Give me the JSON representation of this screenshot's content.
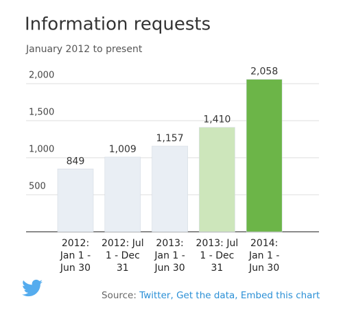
{
  "chart_data": {
    "type": "bar",
    "title": "Information requests",
    "subtitle": "January 2012 to present",
    "categories": [
      "2012: Jan 1 - Jun 30",
      "2012: Jul 1 - Dec 31",
      "2013: Jan 1 - Jun 30",
      "2013: Jul 1 - Dec 31",
      "2014: Jan 1 - Jun 30"
    ],
    "values": [
      849,
      1009,
      1157,
      1410,
      2058
    ],
    "value_labels": [
      "849",
      "1,009",
      "1,157",
      "1,410",
      "2,058"
    ],
    "colors": [
      "#e9eef4",
      "#e9eef4",
      "#e9eef4",
      "#cde6bb",
      "#6cb548"
    ],
    "ylim": [
      0,
      2200
    ],
    "yticks": [
      500,
      {
        "value": 1000,
        "label": "1,000"
      },
      {
        "value": 1500,
        "label": "1,500"
      },
      {
        "value": 2000,
        "label": "2,000"
      }
    ],
    "grid": true
  },
  "footer": {
    "source_label": "Source:",
    "links": [
      "Twitter,",
      "Get the data,",
      "Embed this chart"
    ]
  }
}
